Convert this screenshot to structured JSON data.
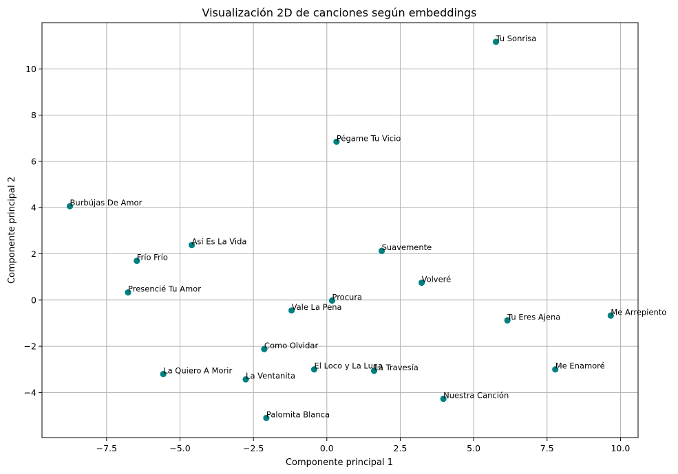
{
  "chart_data": {
    "type": "scatter",
    "title": "Visualización 2D de canciones según embeddings",
    "xlabel": "Componente principal 1",
    "ylabel": "Componente principal 2",
    "xlim": [
      -9.7,
      10.6
    ],
    "ylim": [
      -5.95,
      12.0
    ],
    "x_ticks": [
      -7.5,
      -5.0,
      -2.5,
      0.0,
      2.5,
      5.0,
      7.5,
      10.0
    ],
    "x_tick_labels": [
      "−7.5",
      "−5.0",
      "−2.5",
      "0.0",
      "2.5",
      "5.0",
      "7.5",
      "10.0"
    ],
    "y_ticks": [
      -4,
      -2,
      0,
      2,
      4,
      6,
      8,
      10
    ],
    "y_tick_labels": [
      "−4",
      "−2",
      "0",
      "2",
      "4",
      "6",
      "8",
      "10"
    ],
    "grid": true,
    "marker_color": "#008080",
    "points": [
      {
        "label": "Tu Sonrisa",
        "x": 5.76,
        "y": 11.17
      },
      {
        "label": "Pégame Tu Vicio",
        "x": 0.33,
        "y": 6.85
      },
      {
        "label": "Burbújas De Amor",
        "x": -8.75,
        "y": 4.06
      },
      {
        "label": "Así Es La Vida",
        "x": -4.6,
        "y": 2.38
      },
      {
        "label": "Suavemente",
        "x": 1.87,
        "y": 2.13
      },
      {
        "label": "Frío Frío",
        "x": -6.47,
        "y": 1.7
      },
      {
        "label": "Volveré",
        "x": 3.23,
        "y": 0.75
      },
      {
        "label": "Presencié Tu Amor",
        "x": -6.77,
        "y": 0.33
      },
      {
        "label": "Procura",
        "x": 0.18,
        "y": -0.02
      },
      {
        "label": "Vale La Pena",
        "x": -1.2,
        "y": -0.45
      },
      {
        "label": "Me Arrepiento",
        "x": 9.67,
        "y": -0.67
      },
      {
        "label": "Tu Eres Ajena",
        "x": 6.15,
        "y": -0.88
      },
      {
        "label": "Como Olvidar",
        "x": -2.13,
        "y": -2.12
      },
      {
        "label": "El Loco y La Luna",
        "x": -0.43,
        "y": -3.0
      },
      {
        "label": "La Travesía",
        "x": 1.61,
        "y": -3.06
      },
      {
        "label": "Me Enamoré",
        "x": 7.78,
        "y": -3.0
      },
      {
        "label": "La Quiero A Morir",
        "x": -5.57,
        "y": -3.2
      },
      {
        "label": "La Ventanita",
        "x": -2.76,
        "y": -3.43
      },
      {
        "label": "Nuestra Canción",
        "x": 3.97,
        "y": -4.27
      },
      {
        "label": "Palomita Blanca",
        "x": -2.06,
        "y": -5.1
      }
    ]
  }
}
